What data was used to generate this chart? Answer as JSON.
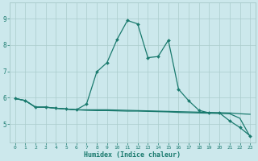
{
  "xlabel": "Humidex (Indice chaleur)",
  "bg_color": "#cce8ec",
  "grid_color": "#aacccc",
  "line_color": "#1a7a6e",
  "xlim": [
    -0.5,
    23.5
  ],
  "ylim": [
    4.3,
    9.6
  ],
  "xticks": [
    0,
    1,
    2,
    3,
    4,
    5,
    6,
    7,
    8,
    9,
    10,
    11,
    12,
    13,
    14,
    15,
    16,
    17,
    18,
    19,
    20,
    21,
    22,
    23
  ],
  "yticks": [
    5,
    6,
    7,
    8,
    9
  ],
  "line1_x": [
    0,
    1,
    2,
    3,
    4,
    5,
    6,
    7,
    8,
    9,
    10,
    11,
    12,
    13,
    14,
    15,
    16,
    17,
    18,
    19,
    20,
    21,
    22,
    23
  ],
  "line1_y": [
    5.97,
    5.89,
    5.64,
    5.64,
    5.6,
    5.57,
    5.54,
    5.52,
    5.51,
    5.51,
    5.5,
    5.49,
    5.49,
    5.48,
    5.47,
    5.46,
    5.44,
    5.43,
    5.42,
    5.41,
    5.4,
    5.39,
    5.22,
    4.52
  ],
  "line2_x": [
    0,
    1,
    2,
    3,
    4,
    5,
    6,
    7,
    8,
    9,
    10,
    11,
    12,
    13,
    14,
    15,
    16,
    17,
    18,
    19,
    20,
    21,
    22,
    23
  ],
  "line2_y": [
    5.97,
    5.89,
    5.64,
    5.64,
    5.6,
    5.57,
    5.54,
    5.54,
    5.54,
    5.54,
    5.53,
    5.52,
    5.51,
    5.5,
    5.49,
    5.48,
    5.47,
    5.46,
    5.45,
    5.44,
    5.43,
    5.42,
    5.39,
    5.37
  ],
  "line3_x": [
    0,
    1,
    2,
    3,
    4,
    5,
    6,
    7,
    8,
    9,
    10,
    11,
    12,
    13,
    14,
    15,
    16,
    17,
    18,
    19,
    20,
    21,
    22,
    23
  ],
  "line3_y": [
    5.97,
    5.89,
    5.64,
    5.64,
    5.6,
    5.57,
    5.54,
    5.76,
    6.98,
    7.33,
    8.22,
    8.93,
    8.8,
    7.52,
    7.56,
    8.18,
    6.32,
    5.88,
    5.52,
    5.42,
    5.42,
    5.12,
    4.87,
    4.55
  ]
}
